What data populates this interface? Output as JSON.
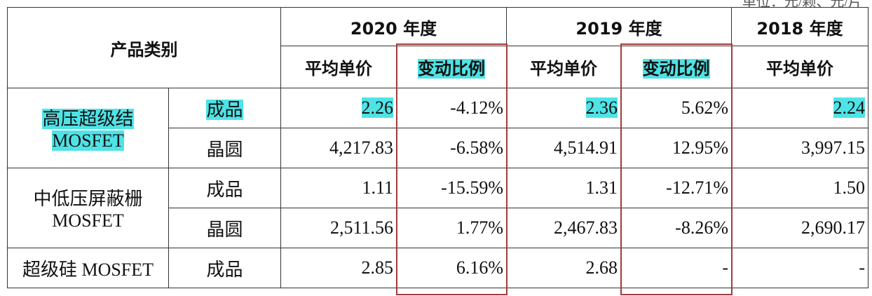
{
  "unit": "单位：元/颗、元/片",
  "header": {
    "category": "产品类别",
    "years": [
      "2020 年度",
      "2019 年度",
      "2018 年度"
    ],
    "columns": [
      "平均单价",
      "变动比例",
      "平均单价",
      "变动比例",
      "平均单价"
    ]
  },
  "groups": [
    {
      "name": [
        "高压超级结",
        "MOSFET"
      ],
      "rows": [
        {
          "type": "成品",
          "cells": [
            "2.26",
            "-4.12%",
            "2.36",
            "5.62%",
            "2.24"
          ]
        },
        {
          "type": "晶圆",
          "cells": [
            "4,217.83",
            "-6.58%",
            "4,514.91",
            "12.95%",
            "3,997.15"
          ]
        }
      ]
    },
    {
      "name": [
        "中低压屏蔽栅",
        "MOSFET"
      ],
      "rows": [
        {
          "type": "成品",
          "cells": [
            "1.11",
            "-15.59%",
            "1.31",
            "-12.71%",
            "1.50"
          ]
        },
        {
          "type": "晶圆",
          "cells": [
            "2,511.56",
            "1.77%",
            "2,467.83",
            "-8.26%",
            "2,690.17"
          ]
        }
      ]
    },
    {
      "name": [
        "超级硅 MOSFET"
      ],
      "rows": [
        {
          "type": "成品",
          "cells": [
            "2.85",
            "6.16%",
            "2.68",
            "-",
            "-"
          ]
        }
      ]
    }
  ]
}
